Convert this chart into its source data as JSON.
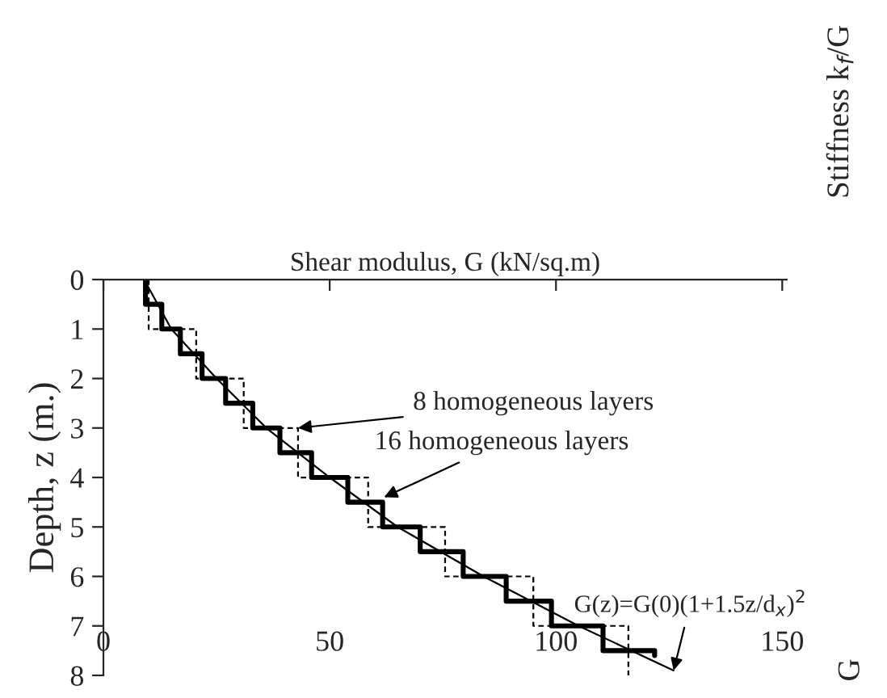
{
  "chart_data": {
    "type": "line",
    "xlabel": "Shear modulus, G (kN/sq.m)",
    "ylabel": "Depth, z (m.)",
    "xlim": [
      0,
      151
    ],
    "xticks": [
      0,
      50,
      100,
      150
    ],
    "ylim": [
      8,
      0
    ],
    "yticks": [
      0,
      1,
      2,
      3,
      4,
      5,
      6,
      7,
      8
    ],
    "grid": false,
    "legend": false,
    "marker": "none",
    "series": [
      {
        "line_style": "solid",
        "color": "#000000",
        "x": [
          9,
          15,
          25,
          36,
          50,
          65,
          84,
          105,
          126
        ],
        "values": [
          0,
          1,
          2,
          3,
          4,
          5,
          6,
          7,
          7.9
        ]
      },
      {
        "line_style": "dashed",
        "color": "#000000",
        "x": [
          10,
          10,
          20.5,
          20.5,
          31,
          31,
          43,
          43,
          58.5,
          58.5,
          75.5,
          75.5,
          95,
          95,
          116,
          116
        ],
        "values": [
          0,
          1,
          1,
          2,
          2,
          3,
          3,
          4,
          4,
          5,
          5,
          6,
          6,
          7,
          7,
          8
        ]
      },
      {
        "line_style": "solid",
        "color": "#000000",
        "x": [
          9.3,
          9.3,
          12.9,
          12.9,
          17,
          17,
          21.8,
          21.8,
          27,
          27,
          33,
          33,
          39,
          39,
          46,
          46,
          54,
          54,
          61.7,
          61.7,
          70,
          70,
          79.5,
          79.5,
          89,
          89,
          99,
          99,
          110.4,
          110.4,
          121.8,
          121.8
        ],
        "values": [
          0,
          0.5,
          0.5,
          1,
          1,
          1.5,
          1.5,
          2,
          2,
          2.5,
          2.5,
          3,
          3,
          3.5,
          3.5,
          4,
          4,
          4.5,
          4.5,
          5,
          5,
          5.5,
          5.5,
          6,
          6,
          6.5,
          6.5,
          7,
          7,
          7.5,
          7.5,
          7.6
        ]
      }
    ],
    "annotations": [
      {
        "text": "8 homogeneous layers",
        "x": 43,
        "y": 3
      },
      {
        "text": "16 homogeneous layers",
        "x": 62,
        "y": 4.4
      },
      {
        "text": "G(z)=G(0)(1+1.5z/d$_{x}$)$^{2}$",
        "x": 126,
        "y": 7.9
      },
      "Stiffness k$_{f}$/G",
      "G"
    ]
  }
}
